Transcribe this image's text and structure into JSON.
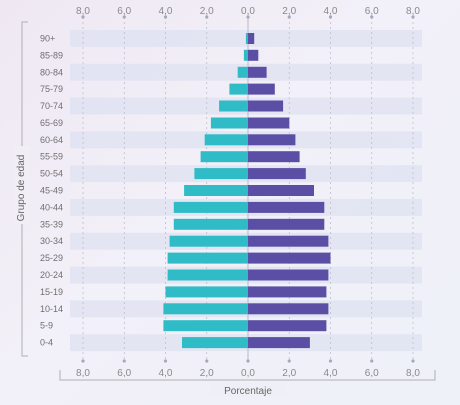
{
  "chart_data": {
    "type": "bar",
    "orientation": "horizontal",
    "style": "population-pyramid",
    "xlabel": "Porcentaje",
    "ylabel": "Grupo de edad",
    "xlim": [
      -8,
      8
    ],
    "x_ticks": [
      "8,0",
      "6,0",
      "4,0",
      "2,0",
      "0,0",
      "2,0",
      "4,0",
      "6,0",
      "8,0"
    ],
    "categories": [
      "90+",
      "85-89",
      "80-84",
      "75-79",
      "70-74",
      "65-69",
      "60-64",
      "55-59",
      "50-54",
      "45-49",
      "40-44",
      "35-39",
      "30-34",
      "25-29",
      "20-24",
      "15-19",
      "10-14",
      "5-9",
      "0-4"
    ],
    "series": [
      {
        "color": "#2fbcc6",
        "side": "left",
        "values": [
          0.1,
          0.2,
          0.5,
          0.9,
          1.4,
          1.8,
          2.1,
          2.3,
          2.6,
          3.1,
          3.6,
          3.6,
          3.8,
          3.9,
          3.9,
          4.0,
          4.1,
          4.1,
          3.2
        ]
      },
      {
        "color": "#5a4fa5",
        "side": "right",
        "values": [
          0.3,
          0.5,
          0.9,
          1.3,
          1.7,
          2.0,
          2.3,
          2.5,
          2.8,
          3.2,
          3.7,
          3.7,
          3.9,
          4.0,
          3.9,
          3.8,
          3.9,
          3.8,
          3.0
        ]
      }
    ],
    "grid": true,
    "colors": {
      "band": "#dde2f1",
      "grid": "#b8b8c8"
    }
  }
}
